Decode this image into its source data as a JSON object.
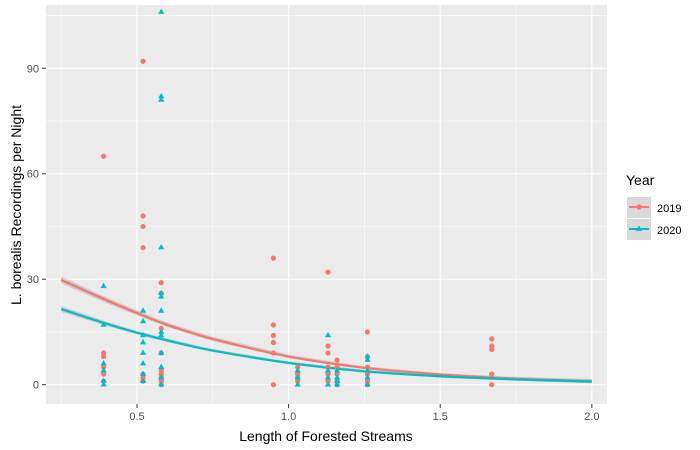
{
  "chart_data": {
    "type": "scatter",
    "title": "",
    "xlabel": "Length of Forested Streams",
    "ylabel": "L. borealis Recordings per Night",
    "xlim": [
      0.2,
      2.05
    ],
    "ylim": [
      -5.5,
      108
    ],
    "x_ticks": [
      0.5,
      1.0,
      1.5,
      2.0
    ],
    "x_tick_labels": [
      "0.5",
      "1.0",
      "1.5",
      "2.0"
    ],
    "y_ticks": [
      0,
      30,
      60,
      90
    ],
    "y_tick_labels": [
      "0",
      "30",
      "60",
      "90"
    ],
    "grid": true,
    "legend": {
      "title": "Year",
      "position": "right",
      "entries": [
        "2019",
        "2020"
      ]
    },
    "colors": {
      "2019": "#F8766D",
      "2020": "#00BFC4",
      "panel": "#EBEBEB",
      "grid": "#FFFFFF",
      "ribbon": "#999999"
    },
    "series": [
      {
        "name": "2019",
        "marker": "circle",
        "points": [
          [
            0.39,
            65
          ],
          [
            0.39,
            9
          ],
          [
            0.39,
            8
          ],
          [
            0.39,
            5
          ],
          [
            0.39,
            3
          ],
          [
            0.39,
            1
          ],
          [
            0.52,
            92
          ],
          [
            0.52,
            48
          ],
          [
            0.52,
            45
          ],
          [
            0.52,
            39
          ],
          [
            0.52,
            3
          ],
          [
            0.52,
            2
          ],
          [
            0.52,
            1
          ],
          [
            0.58,
            29
          ],
          [
            0.58,
            26
          ],
          [
            0.58,
            16
          ],
          [
            0.58,
            9
          ],
          [
            0.58,
            4
          ],
          [
            0.58,
            3
          ],
          [
            0.58,
            2
          ],
          [
            0.58,
            1
          ],
          [
            0.58,
            0
          ],
          [
            0.95,
            36
          ],
          [
            0.95,
            17
          ],
          [
            0.95,
            14
          ],
          [
            0.95,
            12
          ],
          [
            0.95,
            9
          ],
          [
            0.95,
            0
          ],
          [
            1.03,
            5
          ],
          [
            1.03,
            3
          ],
          [
            1.03,
            2
          ],
          [
            1.03,
            1
          ],
          [
            1.13,
            32
          ],
          [
            1.13,
            11
          ],
          [
            1.13,
            9
          ],
          [
            1.13,
            5
          ],
          [
            1.13,
            3
          ],
          [
            1.13,
            1
          ],
          [
            1.16,
            7
          ],
          [
            1.16,
            5
          ],
          [
            1.16,
            3
          ],
          [
            1.16,
            1
          ],
          [
            1.16,
            0
          ],
          [
            1.26,
            15
          ],
          [
            1.26,
            8
          ],
          [
            1.26,
            5
          ],
          [
            1.26,
            3
          ],
          [
            1.26,
            1
          ],
          [
            1.26,
            0
          ],
          [
            1.67,
            13
          ],
          [
            1.67,
            11
          ],
          [
            1.67,
            10
          ],
          [
            1.67,
            3
          ],
          [
            1.67,
            0
          ]
        ],
        "trend": [
          [
            0.25,
            29.8
          ],
          [
            0.4,
            24.0
          ],
          [
            0.5,
            20.4
          ],
          [
            0.6,
            17.0
          ],
          [
            0.75,
            13.0
          ],
          [
            1.0,
            8.0
          ],
          [
            1.25,
            4.8
          ],
          [
            1.5,
            2.9
          ],
          [
            1.75,
            1.7
          ],
          [
            2.0,
            1.0
          ]
        ],
        "ribbon_halfwidth": [
          1.0,
          0.8,
          0.7,
          0.6,
          0.6,
          0.5,
          0.4,
          0.4,
          0.5,
          0.6
        ]
      },
      {
        "name": "2020",
        "marker": "triangle",
        "points": [
          [
            0.39,
            28
          ],
          [
            0.39,
            17
          ],
          [
            0.39,
            6
          ],
          [
            0.39,
            4
          ],
          [
            0.39,
            1
          ],
          [
            0.39,
            0
          ],
          [
            0.52,
            21
          ],
          [
            0.52,
            18
          ],
          [
            0.52,
            14
          ],
          [
            0.52,
            12
          ],
          [
            0.52,
            9
          ],
          [
            0.52,
            6
          ],
          [
            0.52,
            3
          ],
          [
            0.52,
            1
          ],
          [
            0.58,
            106
          ],
          [
            0.58,
            82
          ],
          [
            0.58,
            81
          ],
          [
            0.58,
            39
          ],
          [
            0.58,
            26
          ],
          [
            0.58,
            25
          ],
          [
            0.58,
            21
          ],
          [
            0.58,
            15
          ],
          [
            0.58,
            14
          ],
          [
            0.58,
            9
          ],
          [
            0.58,
            5
          ],
          [
            0.58,
            2
          ],
          [
            0.58,
            0
          ],
          [
            1.03,
            4
          ],
          [
            1.03,
            2
          ],
          [
            1.03,
            0
          ],
          [
            1.13,
            14
          ],
          [
            1.13,
            4
          ],
          [
            1.13,
            2
          ],
          [
            1.13,
            0
          ],
          [
            1.16,
            4
          ],
          [
            1.16,
            2
          ],
          [
            1.16,
            1
          ],
          [
            1.16,
            0
          ],
          [
            1.26,
            8
          ],
          [
            1.26,
            7
          ],
          [
            1.26,
            4
          ],
          [
            1.26,
            2
          ],
          [
            1.26,
            0
          ]
        ],
        "trend": [
          [
            0.25,
            21.5
          ],
          [
            0.4,
            17.3
          ],
          [
            0.5,
            14.8
          ],
          [
            0.6,
            12.6
          ],
          [
            0.75,
            9.7
          ],
          [
            1.0,
            6.2
          ],
          [
            1.25,
            3.8
          ],
          [
            1.5,
            2.4
          ],
          [
            1.75,
            1.5
          ],
          [
            2.0,
            0.9
          ]
        ],
        "ribbon_halfwidth": [
          0.8,
          0.6,
          0.5,
          0.5,
          0.4,
          0.4,
          0.4,
          0.4,
          0.4,
          0.5
        ]
      }
    ]
  }
}
